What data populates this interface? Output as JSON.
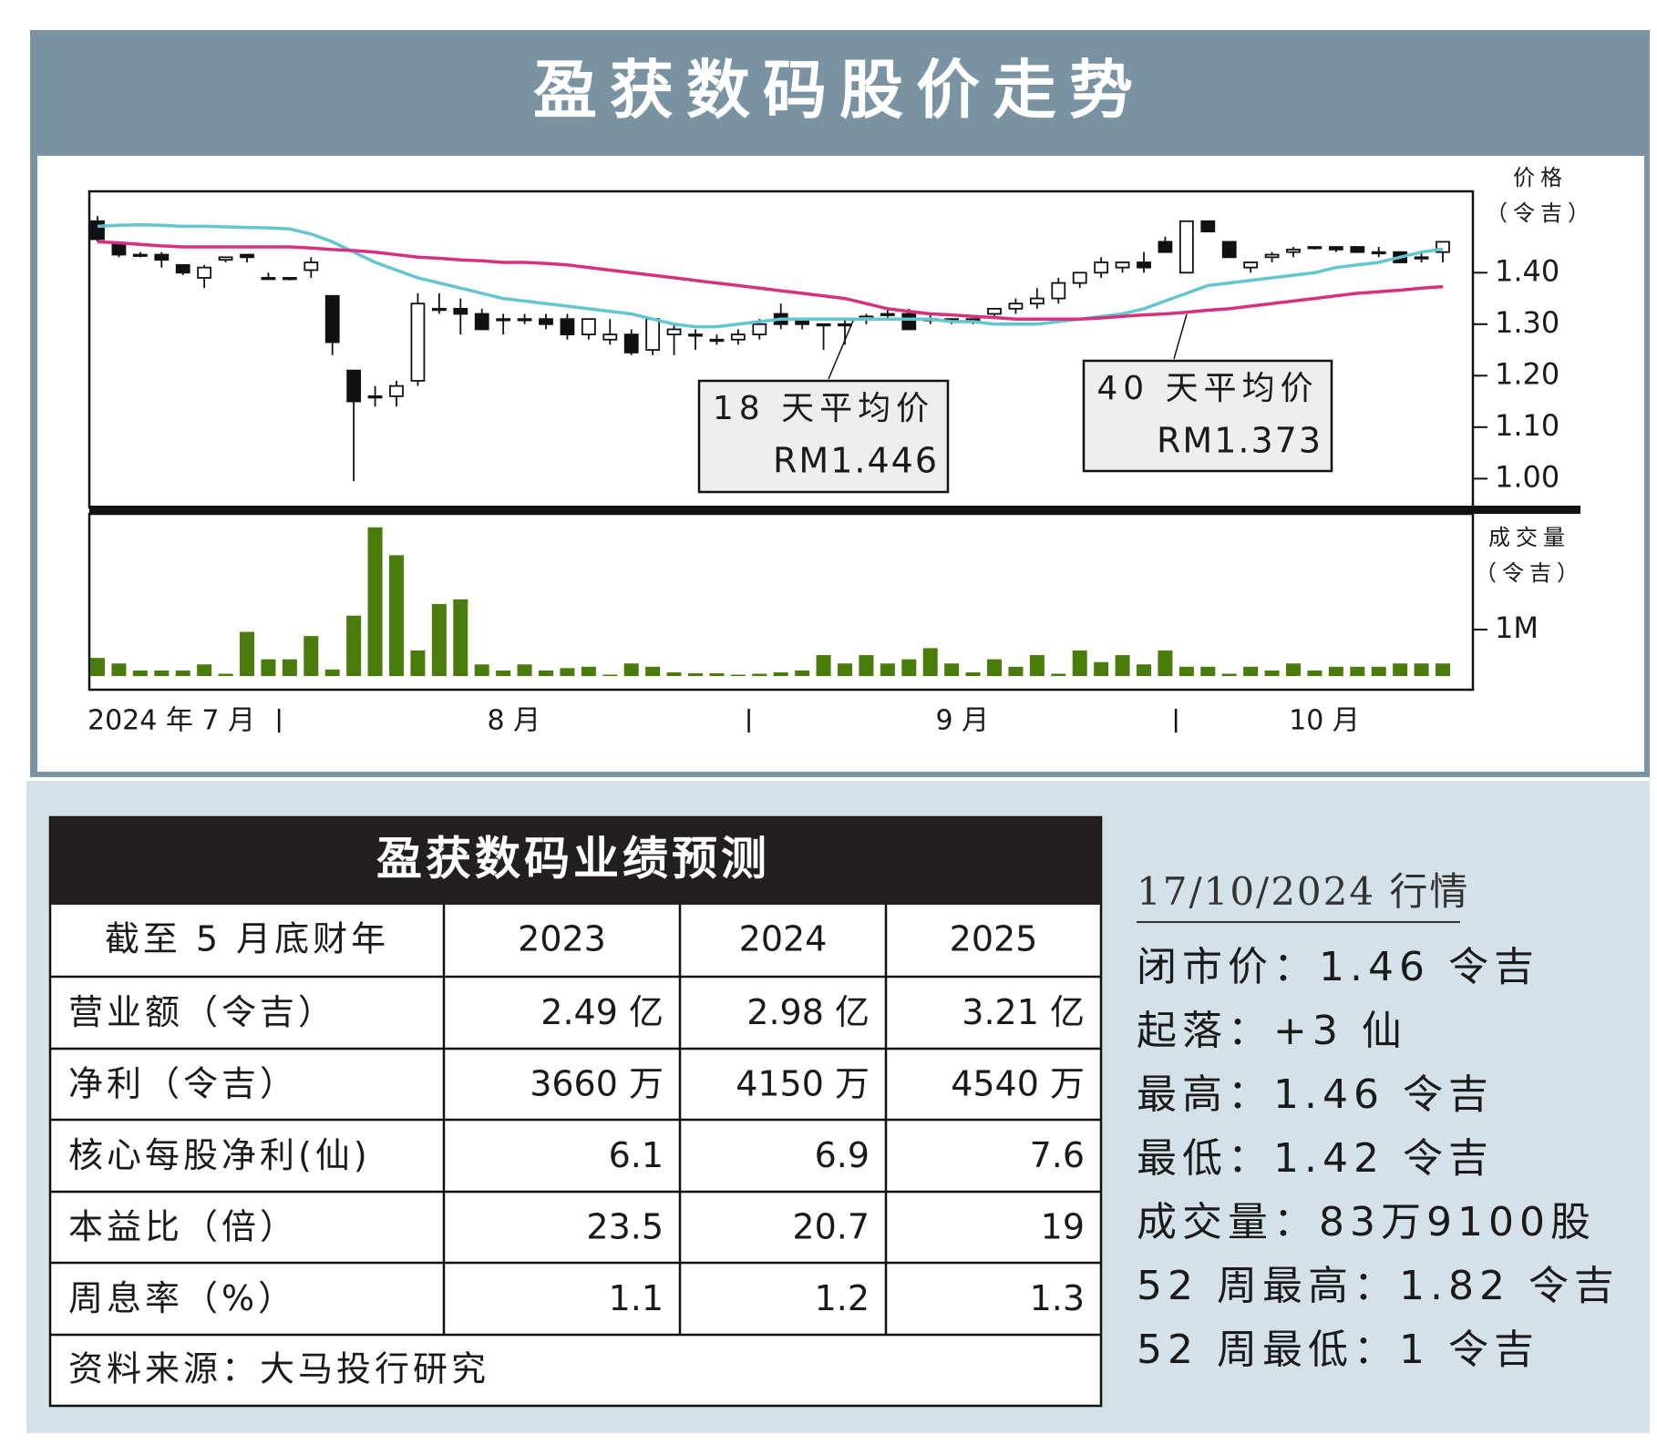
{
  "title": "盈获数码股价走势",
  "chart_data": {
    "type": "candlestick",
    "y_label": "价格",
    "y_unit": "（令吉）",
    "categories": [
      "2024 年 7 月",
      null,
      null,
      null,
      null,
      null,
      null,
      null,
      null,
      "8 月",
      null,
      null,
      null,
      null,
      null,
      null,
      null,
      null,
      null,
      null,
      null,
      null,
      null,
      null,
      null,
      null,
      null,
      null,
      null,
      null,
      null,
      "9 月",
      null,
      null,
      null,
      null,
      null,
      null,
      null,
      null,
      null,
      null,
      null,
      null,
      null,
      null,
      null,
      null,
      null,
      null,
      null,
      "10 月",
      null,
      null,
      null,
      null,
      null,
      null,
      null,
      null,
      null,
      null,
      null,
      null
    ],
    "open": [
      1.5,
      1.455,
      1.435,
      1.435,
      1.415,
      1.39,
      1.425,
      1.435,
      1.39,
      1.39,
      1.405,
      1.355,
      1.21,
      1.16,
      1.16,
      1.19,
      1.33,
      1.33,
      1.32,
      1.31,
      1.31,
      1.31,
      1.31,
      1.28,
      1.27,
      1.28,
      1.25,
      1.28,
      1.28,
      1.27,
      1.27,
      1.28,
      1.32,
      1.31,
      1.3,
      1.3,
      1.31,
      1.32,
      1.32,
      1.31,
      1.31,
      1.31,
      1.32,
      1.33,
      1.34,
      1.35,
      1.38,
      1.4,
      1.41,
      1.42,
      1.46,
      1.4,
      1.5,
      1.46,
      1.41,
      1.43,
      1.44,
      1.45,
      1.45,
      1.45,
      1.44,
      1.44,
      1.43,
      1.44
    ],
    "high": [
      1.51,
      1.46,
      1.44,
      1.44,
      1.415,
      1.415,
      1.43,
      1.435,
      1.4,
      1.39,
      1.43,
      1.355,
      1.21,
      1.18,
      1.19,
      1.36,
      1.36,
      1.35,
      1.33,
      1.32,
      1.32,
      1.32,
      1.32,
      1.31,
      1.31,
      1.29,
      1.31,
      1.3,
      1.29,
      1.28,
      1.29,
      1.31,
      1.34,
      1.31,
      1.3,
      1.31,
      1.32,
      1.33,
      1.33,
      1.32,
      1.31,
      1.31,
      1.33,
      1.35,
      1.37,
      1.39,
      1.4,
      1.43,
      1.42,
      1.44,
      1.47,
      1.5,
      1.5,
      1.46,
      1.42,
      1.44,
      1.45,
      1.45,
      1.45,
      1.45,
      1.45,
      1.44,
      1.44,
      1.46
    ],
    "low": [
      1.46,
      1.43,
      1.43,
      1.41,
      1.395,
      1.37,
      1.42,
      1.42,
      1.39,
      1.385,
      1.39,
      1.24,
      0.995,
      1.14,
      1.14,
      1.18,
      1.32,
      1.28,
      1.29,
      1.28,
      1.3,
      1.29,
      1.27,
      1.27,
      1.26,
      1.24,
      1.24,
      1.24,
      1.25,
      1.26,
      1.26,
      1.27,
      1.29,
      1.29,
      1.25,
      1.26,
      1.3,
      1.31,
      1.29,
      1.3,
      1.3,
      1.3,
      1.31,
      1.32,
      1.33,
      1.34,
      1.37,
      1.39,
      1.4,
      1.4,
      1.44,
      1.4,
      1.48,
      1.43,
      1.4,
      1.42,
      1.43,
      1.445,
      1.44,
      1.44,
      1.43,
      1.42,
      1.42,
      1.42
    ],
    "close": [
      1.465,
      1.435,
      1.435,
      1.425,
      1.4,
      1.41,
      1.43,
      1.43,
      1.39,
      1.39,
      1.42,
      1.265,
      1.15,
      1.16,
      1.18,
      1.34,
      1.33,
      1.32,
      1.29,
      1.31,
      1.31,
      1.3,
      1.28,
      1.31,
      1.28,
      1.245,
      1.31,
      1.29,
      1.28,
      1.27,
      1.28,
      1.3,
      1.3,
      1.3,
      1.3,
      1.3,
      1.315,
      1.32,
      1.29,
      1.31,
      1.31,
      1.31,
      1.33,
      1.34,
      1.35,
      1.38,
      1.4,
      1.42,
      1.42,
      1.41,
      1.44,
      1.5,
      1.48,
      1.43,
      1.42,
      1.435,
      1.445,
      1.45,
      1.445,
      1.44,
      1.44,
      1.42,
      1.43,
      1.46
    ],
    "ylim": [
      0.944,
      1.558
    ],
    "yticks": [
      {
        "value": 1.0,
        "label": "1.00"
      },
      {
        "value": 1.1,
        "label": "1.10"
      },
      {
        "value": 1.2,
        "label": "1.20"
      },
      {
        "value": 1.3,
        "label": "1.30"
      },
      {
        "value": 1.4,
        "label": "1.40"
      }
    ],
    "series": [
      {
        "name": "18 天平均价",
        "color": "#62c6cf",
        "last_label": "RM1.446",
        "values": [
          1.49,
          1.492,
          1.493,
          1.492,
          1.49,
          1.49,
          1.489,
          1.488,
          1.487,
          1.485,
          1.475,
          1.46,
          1.44,
          1.42,
          1.405,
          1.39,
          1.38,
          1.37,
          1.36,
          1.35,
          1.345,
          1.34,
          1.335,
          1.33,
          1.325,
          1.32,
          1.31,
          1.3,
          1.295,
          1.295,
          1.3,
          1.305,
          1.31,
          1.31,
          1.31,
          1.31,
          1.31,
          1.31,
          1.31,
          1.31,
          1.305,
          1.305,
          1.3,
          1.3,
          1.3,
          1.305,
          1.31,
          1.315,
          1.32,
          1.33,
          1.345,
          1.36,
          1.375,
          1.38,
          1.385,
          1.39,
          1.395,
          1.4,
          1.41,
          1.415,
          1.42,
          1.43,
          1.44,
          1.446
        ]
      },
      {
        "name": "40 天平均价",
        "color": "#d8307f",
        "last_label": "RM1.373",
        "values": [
          1.46,
          1.458,
          1.455,
          1.452,
          1.45,
          1.45,
          1.45,
          1.45,
          1.45,
          1.45,
          1.448,
          1.445,
          1.443,
          1.44,
          1.435,
          1.43,
          1.428,
          1.425,
          1.423,
          1.42,
          1.42,
          1.418,
          1.415,
          1.41,
          1.405,
          1.4,
          1.395,
          1.39,
          1.385,
          1.38,
          1.375,
          1.37,
          1.365,
          1.36,
          1.355,
          1.35,
          1.34,
          1.33,
          1.325,
          1.32,
          1.318,
          1.315,
          1.313,
          1.31,
          1.31,
          1.31,
          1.31,
          1.312,
          1.315,
          1.318,
          1.32,
          1.323,
          1.327,
          1.33,
          1.335,
          1.34,
          1.345,
          1.35,
          1.355,
          1.36,
          1.363,
          1.366,
          1.37,
          1.373
        ]
      }
    ],
    "volume": {
      "y_label": "成交量",
      "y_unit": "（令吉）",
      "color": "#4a7c0c",
      "values": [
        390000,
        270000,
        120000,
        120000,
        120000,
        250000,
        50000,
        950000,
        360000,
        360000,
        860000,
        140000,
        1300000,
        3200000,
        2600000,
        550000,
        1550000,
        1650000,
        250000,
        120000,
        250000,
        120000,
        170000,
        200000,
        30000,
        270000,
        200000,
        80000,
        60000,
        60000,
        30000,
        50000,
        80000,
        120000,
        450000,
        270000,
        450000,
        270000,
        360000,
        600000,
        270000,
        80000,
        360000,
        200000,
        450000,
        50000,
        550000,
        300000,
        450000,
        250000,
        550000,
        200000,
        200000,
        50000,
        200000,
        120000,
        270000,
        120000,
        200000,
        200000,
        200000,
        270000,
        270000,
        270000
      ],
      "ylim": [
        0,
        3490000
      ],
      "yticks": [
        {
          "value": 1000000,
          "label": "1M"
        }
      ]
    }
  },
  "table": {
    "title": "盈获数码业绩预测",
    "header": [
      "截至 5 月底财年",
      "2023",
      "2024",
      "2025"
    ],
    "rows": [
      [
        "营业额（令吉）",
        "2.49 亿",
        "2.98 亿",
        "3.21 亿"
      ],
      [
        "净利（令吉）",
        "3660 万",
        "4150 万",
        "4540 万"
      ],
      [
        "核心每股净利(仙)",
        "6.1",
        "6.9",
        "7.6"
      ],
      [
        "本益比（倍）",
        "23.5",
        "20.7",
        "19"
      ],
      [
        "周息率（%）",
        "1.1",
        "1.2",
        "1.3"
      ]
    ],
    "source": "资料来源：大马投行研究"
  },
  "quote": {
    "title": "17/10/2024 行情",
    "lines": [
      "闭市价：1.46 令吉",
      "起落：+3 仙",
      "最高：1.46 令吉",
      "最低：1.42 令吉",
      "成交量：83万9100股",
      "52 周最高：1.82 令吉",
      "52 周最低：1 令吉"
    ]
  }
}
